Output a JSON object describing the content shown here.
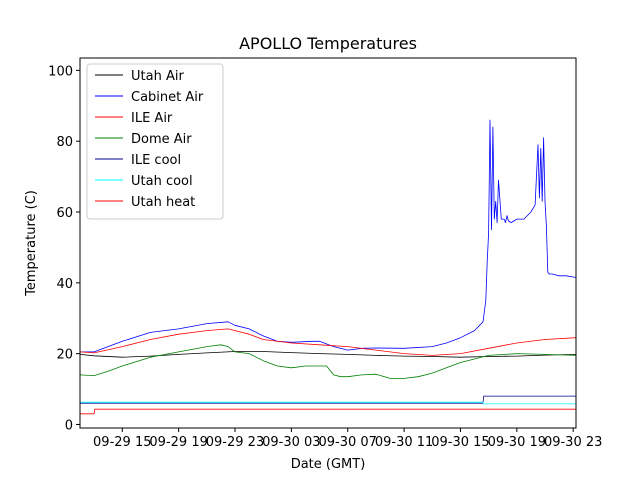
{
  "chart_data": {
    "type": "line",
    "title": "APOLLO Temperatures",
    "xlabel": "Date (GMT)",
    "ylabel": "Temperature (C)",
    "xlim_hours": [
      12.0,
      47.2
    ],
    "ylim": [
      -1,
      103.5
    ],
    "x_unit": "hours since 2017-09-29 00:00 GMT",
    "xticks": [
      {
        "h": 15,
        "label": "09-29 15"
      },
      {
        "h": 19,
        "label": "09-29 19"
      },
      {
        "h": 23,
        "label": "09-29 23"
      },
      {
        "h": 27,
        "label": "09-30 03"
      },
      {
        "h": 31,
        "label": "09-30 07"
      },
      {
        "h": 35,
        "label": "09-30 11"
      },
      {
        "h": 39,
        "label": "09-30 15"
      },
      {
        "h": 43,
        "label": "09-30 19"
      },
      {
        "h": 47,
        "label": "09-30 23"
      }
    ],
    "yticks": [
      0,
      20,
      40,
      60,
      80,
      100
    ],
    "legend_position": "top-left",
    "series": [
      {
        "name": "Utah Air",
        "color": "#000000",
        "x": [
          12.0,
          13.0,
          15.0,
          17.0,
          19.0,
          21.0,
          23.0,
          25.0,
          27.0,
          29.0,
          31.0,
          33.0,
          35.0,
          37.0,
          39.0,
          41.0,
          43.0,
          45.0,
          47.2
        ],
        "y": [
          19.8,
          19.4,
          19.0,
          19.3,
          19.8,
          20.2,
          20.6,
          20.6,
          20.3,
          20.0,
          19.8,
          19.5,
          19.3,
          19.2,
          19.0,
          19.2,
          19.3,
          19.6,
          19.8
        ]
      },
      {
        "name": "Cabinet Air",
        "color": "#0000ff",
        "x": [
          12.0,
          13.0,
          15.0,
          17.0,
          19.0,
          21.0,
          22.5,
          23.0,
          24.0,
          25.0,
          26.0,
          27.0,
          28.5,
          29.0,
          30.0,
          31.0,
          32.0,
          33.0,
          35.0,
          37.0,
          38.0,
          39.0,
          40.0,
          40.6,
          40.8,
          40.9,
          41.0,
          41.1,
          41.2,
          41.3,
          41.4,
          41.5,
          41.6,
          41.7,
          41.9,
          42.1,
          42.2,
          42.3,
          42.4,
          42.6,
          43.0,
          43.5,
          44.0,
          44.3,
          44.5,
          44.6,
          44.7,
          44.8,
          44.9,
          45.0,
          45.1,
          45.2,
          45.3,
          45.5,
          46.0,
          46.5,
          47.2
        ],
        "y": [
          20.5,
          20.5,
          23.5,
          26.0,
          27.0,
          28.5,
          29.0,
          28.0,
          27.0,
          25.0,
          23.5,
          23.2,
          23.5,
          23.5,
          22.0,
          21.0,
          21.5,
          21.6,
          21.5,
          22.0,
          23.0,
          24.5,
          26.5,
          29.0,
          35.0,
          46.0,
          54.0,
          86.0,
          55.0,
          84.0,
          58.0,
          63.0,
          57.0,
          69.0,
          58.0,
          58.0,
          57.0,
          59.0,
          57.5,
          57.0,
          58.0,
          58.0,
          60.0,
          62.0,
          79.0,
          64.0,
          78.0,
          63.0,
          81.0,
          63.0,
          56.0,
          43.0,
          42.5,
          42.5,
          42.0,
          42.0,
          41.5
        ]
      },
      {
        "name": "ILE Air",
        "color": "#ff0000",
        "x": [
          12.0,
          13.0,
          15.0,
          17.0,
          19.0,
          21.0,
          22.5,
          23.0,
          24.0,
          25.0,
          27.0,
          29.0,
          31.0,
          33.0,
          35.0,
          37.0,
          39.0,
          41.0,
          43.0,
          45.0,
          47.2
        ],
        "y": [
          20.5,
          20.2,
          22.0,
          24.0,
          25.5,
          26.5,
          27.0,
          26.5,
          25.5,
          24.0,
          23.0,
          22.5,
          22.0,
          21.0,
          20.0,
          19.5,
          20.0,
          21.5,
          23.0,
          24.0,
          24.5
        ]
      },
      {
        "name": "Dome Air",
        "color": "#008000",
        "x": [
          12.0,
          13.0,
          14.0,
          15.0,
          17.0,
          19.0,
          21.0,
          22.0,
          22.5,
          23.0,
          24.0,
          25.0,
          26.0,
          27.0,
          28.0,
          29.0,
          29.5,
          30.0,
          30.5,
          31.0,
          32.0,
          33.0,
          34.0,
          35.0,
          36.0,
          37.0,
          38.0,
          39.0,
          40.0,
          41.0,
          43.0,
          45.0,
          47.2
        ],
        "y": [
          14.0,
          13.8,
          15.0,
          16.5,
          19.0,
          20.5,
          22.0,
          22.5,
          22.0,
          20.5,
          20.0,
          18.0,
          16.5,
          16.0,
          16.5,
          16.5,
          16.5,
          14.0,
          13.5,
          13.5,
          14.0,
          14.2,
          13.0,
          13.0,
          13.5,
          14.5,
          16.0,
          17.5,
          18.5,
          19.5,
          20.0,
          19.8,
          19.5
        ]
      },
      {
        "name": "ILE cool",
        "color": "#00008b",
        "x": [
          12.0,
          40.6,
          40.65,
          47.2
        ],
        "y": [
          6.0,
          6.0,
          8.0,
          8.0
        ]
      },
      {
        "name": "Utah cool",
        "color": "#00ffff",
        "x": [
          12.0,
          40.6,
          40.65,
          47.2
        ],
        "y": [
          6.3,
          6.3,
          5.8,
          5.8
        ]
      },
      {
        "name": "Utah heat",
        "color": "#ff0000",
        "x": [
          12.0,
          13.0,
          13.05,
          47.2
        ],
        "y": [
          3.0,
          3.0,
          4.3,
          4.3
        ]
      }
    ]
  }
}
